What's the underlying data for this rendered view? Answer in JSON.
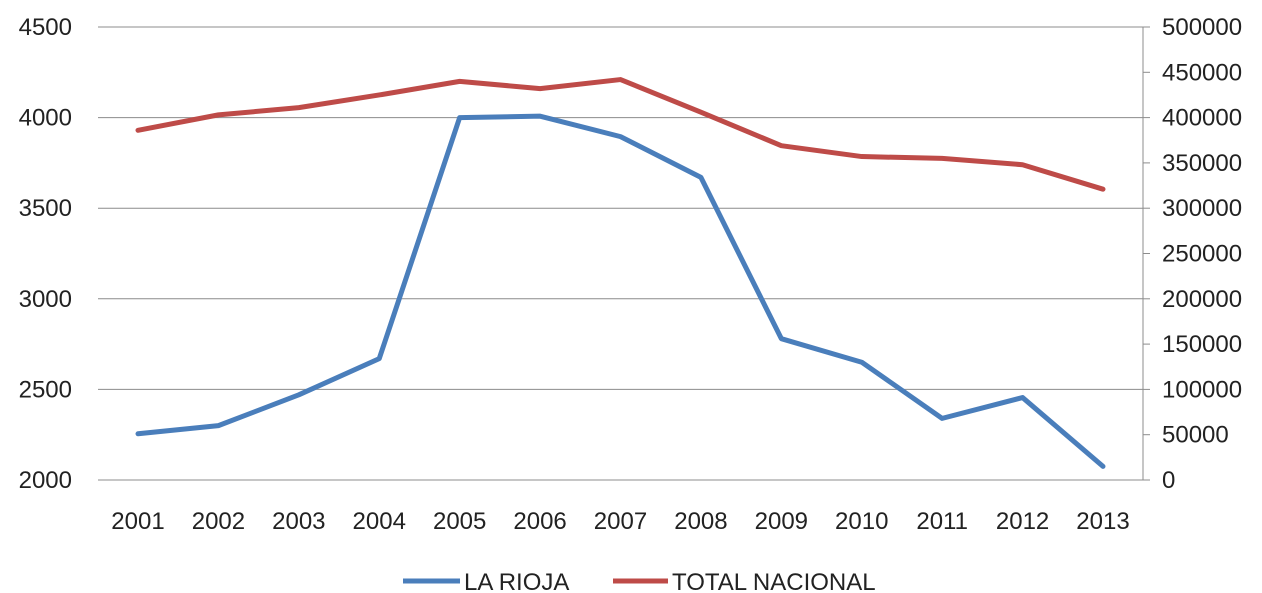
{
  "chart_data": {
    "type": "line",
    "title": "",
    "x": [
      "2001",
      "2002",
      "2003",
      "2004",
      "2005",
      "2006",
      "2007",
      "2008",
      "2009",
      "2010",
      "2011",
      "2012",
      "2013"
    ],
    "series": [
      {
        "name": "LA RIOJA",
        "axis": "left",
        "color": "#4a7ebb",
        "values": [
          2255,
          2300,
          2470,
          2670,
          4000,
          4008,
          3895,
          3670,
          2780,
          2650,
          2340,
          2455,
          2075
        ]
      },
      {
        "name": "TOTAL NACIONAL",
        "axis": "right",
        "color": "#be4b48",
        "values": [
          386000,
          403000,
          411000,
          425000,
          440000,
          432000,
          442000,
          406000,
          369000,
          357000,
          355000,
          348000,
          321000
        ]
      }
    ],
    "y_left": {
      "range": [
        2000,
        4500
      ],
      "ticks": [
        "2000",
        "2500",
        "3000",
        "3500",
        "4000",
        "4500"
      ]
    },
    "y_right": {
      "range": [
        0,
        500000
      ],
      "ticks": [
        "0",
        "50000",
        "100000",
        "150000",
        "200000",
        "250000",
        "300000",
        "350000",
        "400000",
        "450000",
        "500000"
      ]
    },
    "grid": true,
    "legend_position": "bottom"
  }
}
